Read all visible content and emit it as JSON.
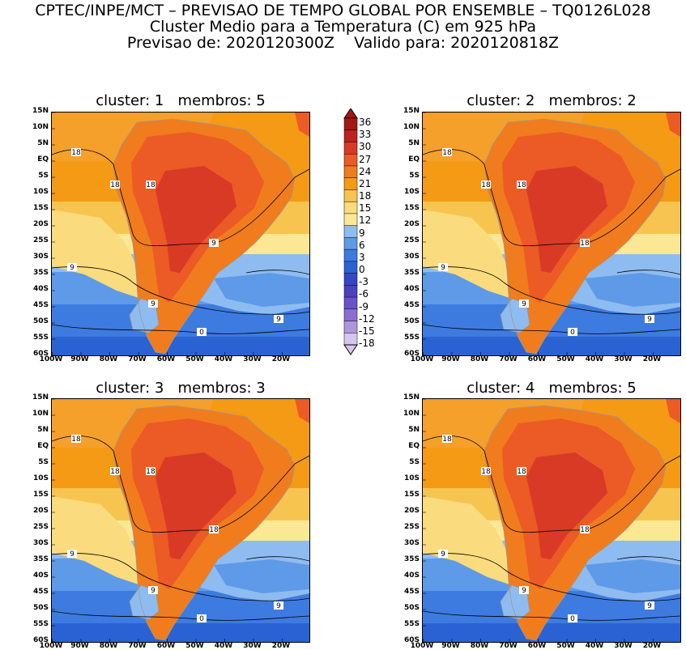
{
  "header": {
    "line1": "CPTEC/INPE/MCT – PREVISAO DE TEMPO GLOBAL POR ENSEMBLE – TQ0126L028",
    "line2": "Cluster Medio para a Temperatura (C) em 925 hPa",
    "line3": "Previsao de: 2020120300Z    Valido para: 2020120818Z"
  },
  "panels": [
    {
      "title": "cluster: 1   membros: 5"
    },
    {
      "title": "cluster: 2   membros: 2"
    },
    {
      "title": "cluster: 3   membros: 3"
    },
    {
      "title": "cluster: 4   membros: 5"
    }
  ],
  "lat_labels": [
    "15N",
    "10N",
    "5N",
    "EQ",
    "5S",
    "10S",
    "15S",
    "20S",
    "25S",
    "30S",
    "35S",
    "40S",
    "45S",
    "50S",
    "55S",
    "60S"
  ],
  "lon_labels": [
    "100W",
    "90W",
    "80W",
    "70W",
    "60W",
    "50W",
    "40W",
    "30W",
    "20W"
  ],
  "colorbar": {
    "labels": [
      "36",
      "33",
      "30",
      "27",
      "24",
      "21",
      "18",
      "15",
      "12",
      "9",
      "6",
      "3",
      "0",
      "-3",
      "-6",
      "-9",
      "-12",
      "-15",
      "-18"
    ],
    "colors": [
      "#a51616",
      "#c0201e",
      "#d93a26",
      "#ec5a26",
      "#f07c1e",
      "#f59a14",
      "#f8c450",
      "#fadb7e",
      "#fbe894",
      "#8fbcf0",
      "#5e9ae8",
      "#3d7be0",
      "#2a62d4",
      "#3646c8",
      "#4a40c0",
      "#6a52c8",
      "#8a6ed2",
      "#ad96de",
      "#d4c6ec"
    ]
  },
  "contour_labels": {
    "p1": [
      "18",
      "18",
      "18",
      "9",
      "9",
      "9",
      "0",
      "9"
    ],
    "p2": [
      "18",
      "18",
      "18",
      "18",
      "9",
      "9",
      "0",
      "9"
    ],
    "p3": [
      "18",
      "18",
      "18",
      "18",
      "9",
      "9",
      "0",
      "9"
    ],
    "p4": [
      "18",
      "18",
      "18",
      "18",
      "9",
      "9",
      "0",
      "9"
    ]
  }
}
